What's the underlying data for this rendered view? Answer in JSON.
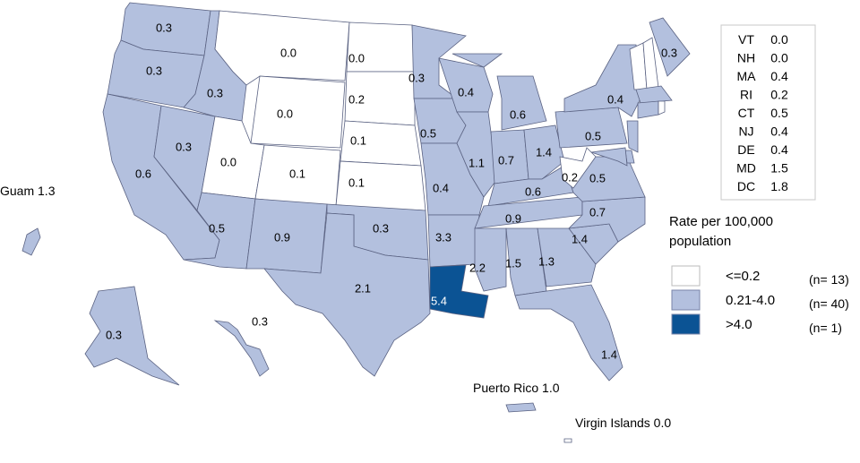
{
  "colors": {
    "low": "#ffffff",
    "mid": "#b3c0de",
    "high": "#0b5394",
    "border": "#5a6282"
  },
  "states": [
    {
      "id": "WA",
      "value": "0.3",
      "class": "mid"
    },
    {
      "id": "OR",
      "value": "0.3",
      "class": "mid"
    },
    {
      "id": "CA",
      "value": "0.6",
      "class": "mid"
    },
    {
      "id": "NV",
      "value": "0.3",
      "class": "mid"
    },
    {
      "id": "ID",
      "value": "0.3",
      "class": "mid"
    },
    {
      "id": "MT",
      "value": "0.0",
      "class": "low"
    },
    {
      "id": "WY",
      "value": "0.0",
      "class": "low"
    },
    {
      "id": "UT",
      "value": "0.0",
      "class": "low"
    },
    {
      "id": "CO",
      "value": "0.1",
      "class": "low"
    },
    {
      "id": "AZ",
      "value": "0.5",
      "class": "mid"
    },
    {
      "id": "NM",
      "value": "0.9",
      "class": "mid"
    },
    {
      "id": "ND",
      "value": "0.0",
      "class": "low"
    },
    {
      "id": "SD",
      "value": "0.2",
      "class": "low"
    },
    {
      "id": "NE",
      "value": "0.1",
      "class": "low"
    },
    {
      "id": "KS",
      "value": "0.1",
      "class": "low"
    },
    {
      "id": "OK",
      "value": "0.3",
      "class": "mid"
    },
    {
      "id": "TX",
      "value": "2.1",
      "class": "mid"
    },
    {
      "id": "MN",
      "value": "0.3",
      "class": "mid"
    },
    {
      "id": "IA",
      "value": "0.5",
      "class": "mid"
    },
    {
      "id": "MO",
      "value": "0.4",
      "class": "mid"
    },
    {
      "id": "AR",
      "value": "3.3",
      "class": "mid"
    },
    {
      "id": "LA",
      "value": "5.4",
      "class": "high"
    },
    {
      "id": "WI",
      "value": "0.4",
      "class": "mid"
    },
    {
      "id": "IL",
      "value": "1.1",
      "class": "mid"
    },
    {
      "id": "MI",
      "value": "0.6",
      "class": "mid"
    },
    {
      "id": "IN",
      "value": "0.7",
      "class": "mid"
    },
    {
      "id": "OH",
      "value": "1.4",
      "class": "mid"
    },
    {
      "id": "KY",
      "value": "0.6",
      "class": "mid"
    },
    {
      "id": "TN",
      "value": "0.9",
      "class": "mid"
    },
    {
      "id": "MS",
      "value": "2.2",
      "class": "mid"
    },
    {
      "id": "AL",
      "value": "1.5",
      "class": "mid"
    },
    {
      "id": "GA",
      "value": "1.3",
      "class": "mid"
    },
    {
      "id": "FL",
      "value": "1.4",
      "class": "mid"
    },
    {
      "id": "SC",
      "value": "1.4",
      "class": "mid"
    },
    {
      "id": "NC",
      "value": "0.7",
      "class": "mid"
    },
    {
      "id": "VA",
      "value": "0.5",
      "class": "mid"
    },
    {
      "id": "WV",
      "value": "0.2",
      "class": "low"
    },
    {
      "id": "PA",
      "value": "0.5",
      "class": "mid"
    },
    {
      "id": "NY",
      "value": "0.4",
      "class": "mid"
    },
    {
      "id": "ME",
      "value": "0.3",
      "class": "mid"
    },
    {
      "id": "AK",
      "value": "0.3",
      "class": "mid"
    },
    {
      "id": "HI",
      "value": "0.3",
      "class": "mid"
    }
  ],
  "small_states_table": [
    {
      "state": "VT",
      "value": "0.0"
    },
    {
      "state": "NH",
      "value": "0.0"
    },
    {
      "state": "MA",
      "value": "0.4"
    },
    {
      "state": "RI",
      "value": "0.2"
    },
    {
      "state": "CT",
      "value": "0.5"
    },
    {
      "state": "NJ",
      "value": "0.4"
    },
    {
      "state": "DE",
      "value": "0.4"
    },
    {
      "state": "MD",
      "value": "1.5"
    },
    {
      "state": "DC",
      "value": "1.8"
    }
  ],
  "territories": {
    "guam": "Guam 1.3",
    "puerto_rico": "Puerto Rico 1.0",
    "virgin_islands": "Virgin Islands 0.0"
  },
  "legend": {
    "title_line1": "Rate per 100,000",
    "title_line2": "population",
    "items": [
      {
        "label": "<=0.2",
        "count": "(n= 13)",
        "class": "low"
      },
      {
        "label": "0.21-4.0",
        "count": "(n= 40)",
        "class": "mid"
      },
      {
        "label": ">4.0",
        "count": "(n=  1)",
        "class": "high"
      }
    ]
  }
}
